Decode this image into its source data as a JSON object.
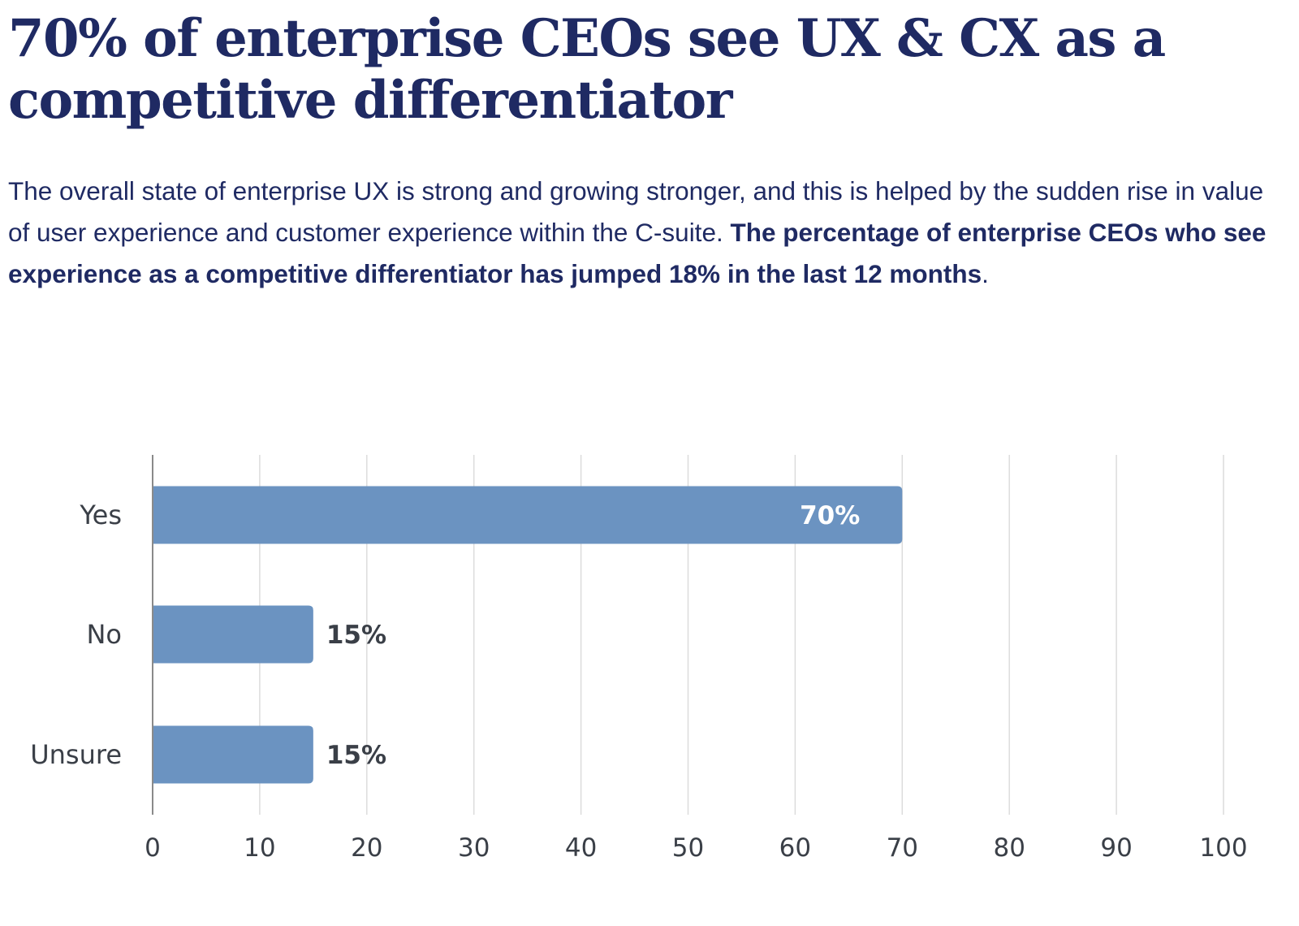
{
  "article": {
    "headline": "70% of enterprise CEOs see UX & CX as a competitive differentiator",
    "body_plain": "The overall state of enterprise UX is strong and growing stronger, and this is helped by the sudden rise in value of user experience and customer experience within the C-suite. ",
    "body_bold": "The percentage of enterprise CEOs who see experience as a competitive differentiator has jumped 18% in the last 12 months",
    "body_end": "."
  },
  "colors": {
    "headline": "#1f2a63",
    "bar": "#6b93c1",
    "grid": "#dcdcdc",
    "axis": "#8a8a8a",
    "label_dark": "#3a3f47",
    "label_inside": "#ffffff"
  },
  "chart_data": {
    "type": "bar",
    "orientation": "horizontal",
    "categories": [
      "Yes",
      "No",
      "Unsure"
    ],
    "values": [
      70,
      15,
      15
    ],
    "value_labels": [
      "70%",
      "15%",
      "15%"
    ],
    "xlim": [
      0,
      100
    ],
    "xticks": [
      0,
      10,
      20,
      30,
      40,
      50,
      60,
      70,
      80,
      90,
      100
    ],
    "grid": true,
    "title": "",
    "xlabel": "",
    "ylabel": ""
  }
}
